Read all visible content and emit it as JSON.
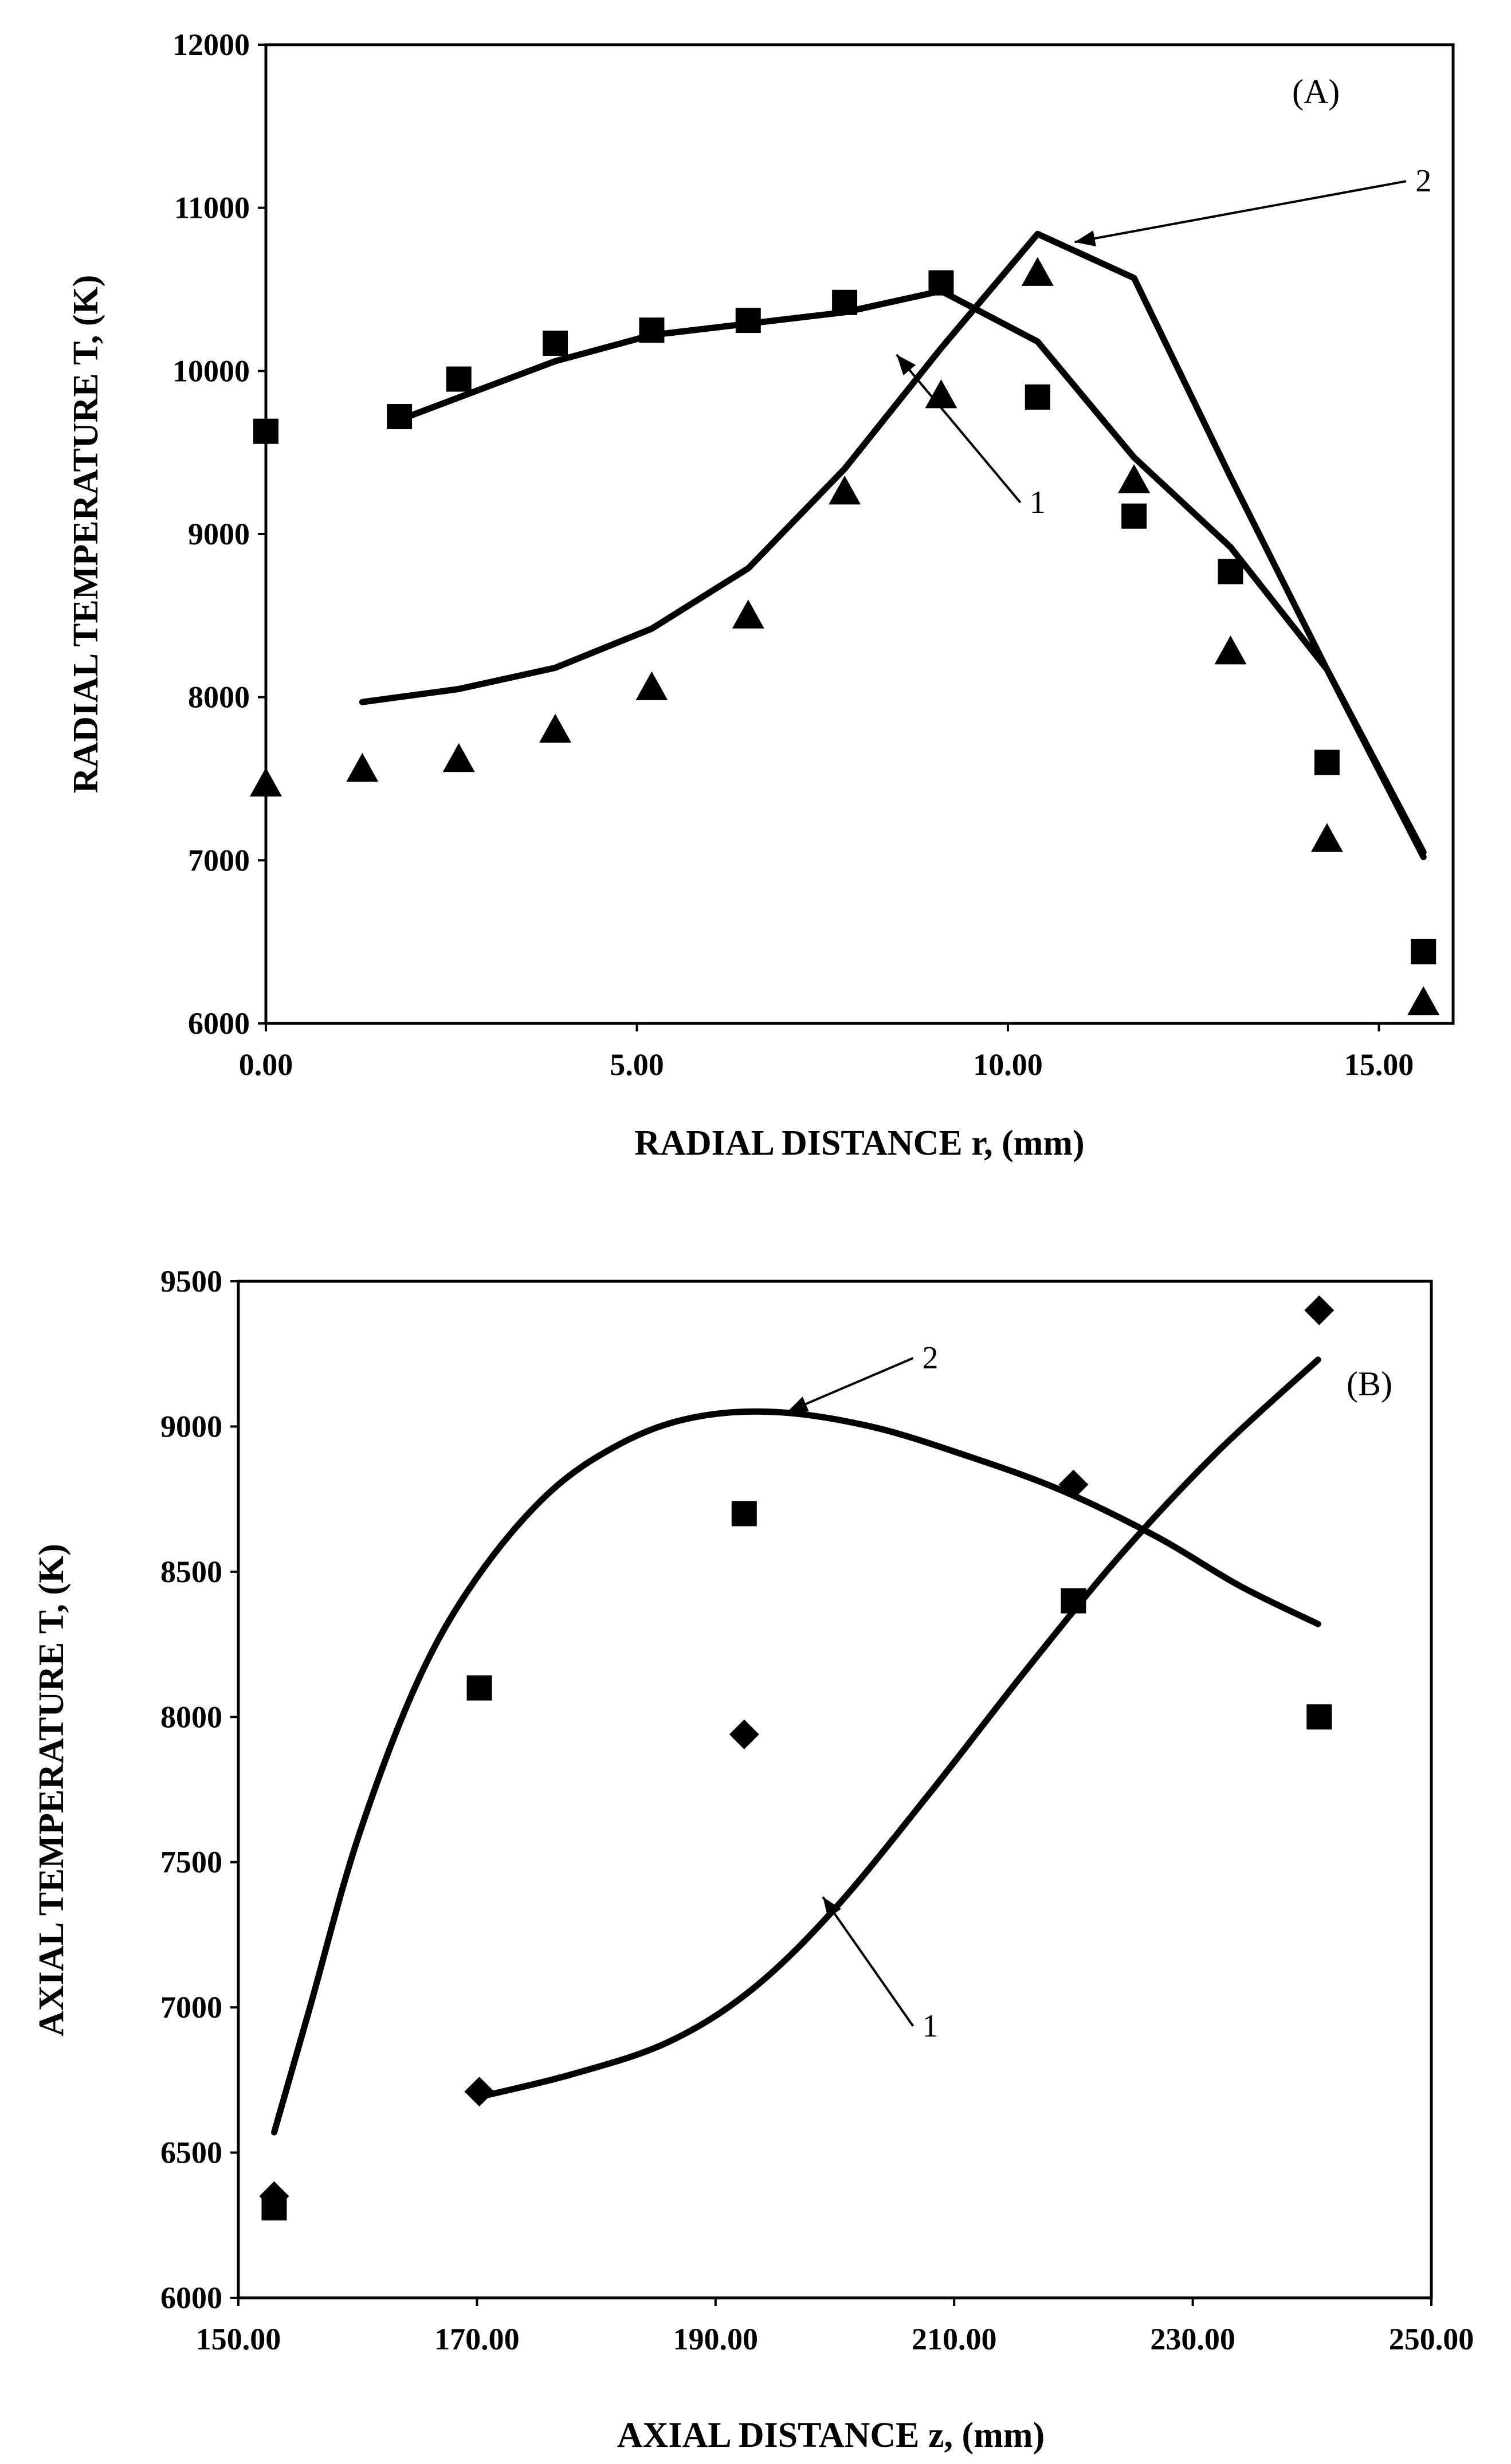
{
  "chart_data": [
    {
      "id": "A",
      "type": "line",
      "panel_label": "(A)",
      "xlabel": "RADIAL DISTANCE r, (mm)",
      "ylabel": "RADIAL TEMPERATURE T, (K)",
      "xlim": [
        0,
        16
      ],
      "ylim": [
        6000,
        12000
      ],
      "xticks": [
        0,
        5,
        10,
        15
      ],
      "xtick_labels": [
        "0.00",
        "5.00",
        "10.00",
        "15.00"
      ],
      "yticks": [
        6000,
        7000,
        8000,
        9000,
        10000,
        11000,
        12000
      ],
      "ytick_labels": [
        "6000",
        "7000",
        "8000",
        "9000",
        "10000",
        "11000",
        "12000"
      ],
      "series": [
        {
          "name": "1",
          "kind": "line",
          "x": [
            1.8,
            3.9,
            5.2,
            6.5,
            7.8,
            9.1,
            10.4,
            11.7,
            13.0,
            14.3,
            15.6
          ],
          "y": [
            9700,
            10060,
            10220,
            10290,
            10360,
            10490,
            10180,
            9470,
            8920,
            8170,
            7050
          ]
        },
        {
          "name": "2",
          "kind": "line",
          "x": [
            1.3,
            2.6,
            3.9,
            5.2,
            6.5,
            7.8,
            9.1,
            10.4,
            11.7,
            13.0,
            14.3,
            15.6
          ],
          "y": [
            7970,
            8050,
            8180,
            8420,
            8790,
            9400,
            10140,
            10840,
            10570,
            9350,
            8170,
            7020
          ]
        },
        {
          "name": "squares",
          "kind": "markers",
          "marker": "square",
          "x": [
            0.0,
            1.8,
            2.6,
            3.9,
            5.2,
            6.5,
            7.8,
            9.1,
            10.4,
            11.7,
            13.0,
            14.3,
            15.6
          ],
          "y": [
            9630,
            9720,
            9950,
            10170,
            10250,
            10310,
            10420,
            10540,
            9840,
            9110,
            8770,
            7600,
            6440
          ]
        },
        {
          "name": "triangles",
          "kind": "markers",
          "marker": "triangle",
          "x": [
            0.0,
            1.3,
            2.6,
            3.9,
            5.2,
            6.5,
            7.8,
            9.1,
            10.4,
            11.7,
            13.0,
            14.3,
            15.6
          ],
          "y": [
            7470,
            7560,
            7620,
            7800,
            8060,
            8500,
            9260,
            9850,
            10600,
            9330,
            8280,
            7130,
            6130
          ]
        }
      ],
      "annotations": [
        {
          "text": "1",
          "label_at": [
            10.4,
            9130
          ],
          "arrow_to": [
            8.5,
            10100
          ]
        },
        {
          "text": "2",
          "label_at": [
            15.6,
            11100
          ],
          "arrow_to": [
            10.9,
            10790
          ]
        }
      ]
    },
    {
      "id": "B",
      "type": "line",
      "panel_label": "(B)",
      "xlabel": "AXIAL DISTANCE z, (mm)",
      "ylabel": "AXIAL TEMPERATURE T, (K)",
      "xlim": [
        150,
        250
      ],
      "ylim": [
        6000,
        9500
      ],
      "xticks": [
        150,
        170,
        190,
        210,
        230,
        250
      ],
      "xtick_labels": [
        "150.00",
        "170.00",
        "190.00",
        "210.00",
        "230.00",
        "250.00"
      ],
      "yticks": [
        6000,
        6500,
        7000,
        7500,
        8000,
        8500,
        9000,
        9500
      ],
      "ytick_labels": [
        "6000",
        "6500",
        "7000",
        "7500",
        "8000",
        "8500",
        "9000",
        "9500"
      ],
      "series": [
        {
          "name": "1",
          "kind": "line",
          "x": [
            170,
            178,
            186,
            193,
            200,
            208,
            216,
            224,
            232,
            240.5
          ],
          "y": [
            6690,
            6770,
            6880,
            7060,
            7340,
            7740,
            8160,
            8560,
            8910,
            9230
          ]
        },
        {
          "name": "2",
          "kind": "line",
          "x": [
            153,
            156,
            160,
            165,
            170,
            176,
            182,
            188,
            195,
            203,
            211,
            219,
            227,
            234,
            240.5
          ],
          "y": [
            6570,
            7000,
            7580,
            8120,
            8480,
            8770,
            8940,
            9030,
            9050,
            9000,
            8900,
            8780,
            8620,
            8450,
            8320
          ]
        },
        {
          "name": "squares",
          "kind": "markers",
          "marker": "square",
          "x": [
            153.0,
            170.2,
            192.4,
            220.0,
            240.6
          ],
          "y": [
            6310,
            8100,
            8700,
            8400,
            8000
          ]
        },
        {
          "name": "diamonds",
          "kind": "markers",
          "marker": "diamond",
          "x": [
            153.0,
            170.2,
            192.4,
            220.0,
            240.6
          ],
          "y": [
            6350,
            6710,
            7940,
            8800,
            9400
          ]
        }
      ],
      "annotations": [
        {
          "text": "2",
          "label_at": [
            208,
            9200
          ],
          "arrow_to": [
            196,
            9050
          ]
        },
        {
          "text": "1",
          "label_at": [
            208,
            6900
          ],
          "arrow_to": [
            199,
            7380
          ]
        }
      ]
    }
  ]
}
